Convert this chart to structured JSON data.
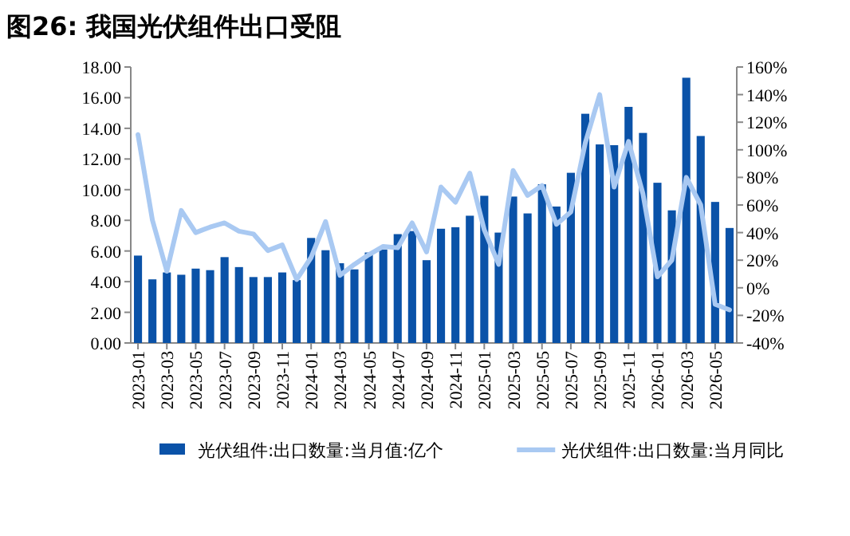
{
  "chart_data": {
    "type": "bar",
    "title": "图26: 我国光伏组件出口受阻",
    "categories": [
      "2023-01",
      null,
      "2023-03",
      null,
      "2023-05",
      null,
      "2023-07",
      null,
      "2023-09",
      null,
      "2023-11",
      null,
      "2024-01",
      null,
      "2024-03",
      null,
      "2024-05",
      null,
      "2024-07",
      null,
      "2024-09",
      null,
      "2024-11",
      null,
      "2025-01",
      null,
      "2025-03",
      null,
      "2025-05",
      null,
      "2025-07",
      null,
      "2025-09",
      null,
      "2025-11",
      null,
      "2026-01",
      null,
      "2026-03",
      null,
      "2026-05",
      null
    ],
    "series": [
      {
        "name": "光伏组件:出口数量:当月值:亿个",
        "color": "#0a52a8",
        "values": [
          5.7,
          4.15,
          4.6,
          4.45,
          4.85,
          4.75,
          5.6,
          4.95,
          4.3,
          4.3,
          4.6,
          4.1,
          6.85,
          6.05,
          5.2,
          4.8,
          5.9,
          6.1,
          7.1,
          7.3,
          5.4,
          7.45,
          7.55,
          8.3,
          9.6,
          7.2,
          9.55,
          8.45,
          10.35,
          8.9,
          11.1,
          14.95,
          12.95,
          12.9,
          15.4,
          13.7,
          10.45,
          8.65,
          17.3,
          13.5,
          9.2,
          7.5
        ]
      },
      {
        "name": "光伏组件:出口数量:当月同比",
        "type": "line",
        "axis": "y2",
        "color": "#a9c9f2",
        "values": [
          111,
          49,
          12,
          56,
          40,
          44,
          47,
          41,
          39,
          27,
          31,
          6,
          22,
          48,
          9,
          17,
          24,
          30,
          29,
          47,
          26,
          73,
          62,
          83,
          42,
          17,
          85,
          67,
          74,
          46,
          55,
          105,
          140,
          73,
          106,
          68,
          8,
          20,
          80,
          60,
          -12,
          -16
        ]
      }
    ],
    "ylim": [
      0,
      18
    ],
    "yticks": [
      {
        "value": 0,
        "label": "0.00"
      },
      {
        "value": 2,
        "label": "2.00"
      },
      {
        "value": 4,
        "label": "4.00"
      },
      {
        "value": 6,
        "label": "6.00"
      },
      {
        "value": 8,
        "label": "8.00"
      },
      {
        "value": 10,
        "label": "10.00"
      },
      {
        "value": 12,
        "label": "12.00"
      },
      {
        "value": 14,
        "label": "14.00"
      },
      {
        "value": 16,
        "label": "16.00"
      },
      {
        "value": 18,
        "label": "18.00"
      }
    ],
    "y2lim": [
      -40,
      160
    ],
    "y2ticks": [
      {
        "value": -40,
        "label": "-40%"
      },
      {
        "value": -20,
        "label": "-20%"
      },
      {
        "value": 0,
        "label": "0%"
      },
      {
        "value": 20,
        "label": "20%"
      },
      {
        "value": 40,
        "label": "40%"
      },
      {
        "value": 60,
        "label": "60%"
      },
      {
        "value": 80,
        "label": "80%"
      },
      {
        "value": 100,
        "label": "100%"
      },
      {
        "value": 120,
        "label": "120%"
      },
      {
        "value": 140,
        "label": "140%"
      },
      {
        "value": 160,
        "label": "160%"
      }
    ],
    "legend": "bottom",
    "grid": false
  }
}
